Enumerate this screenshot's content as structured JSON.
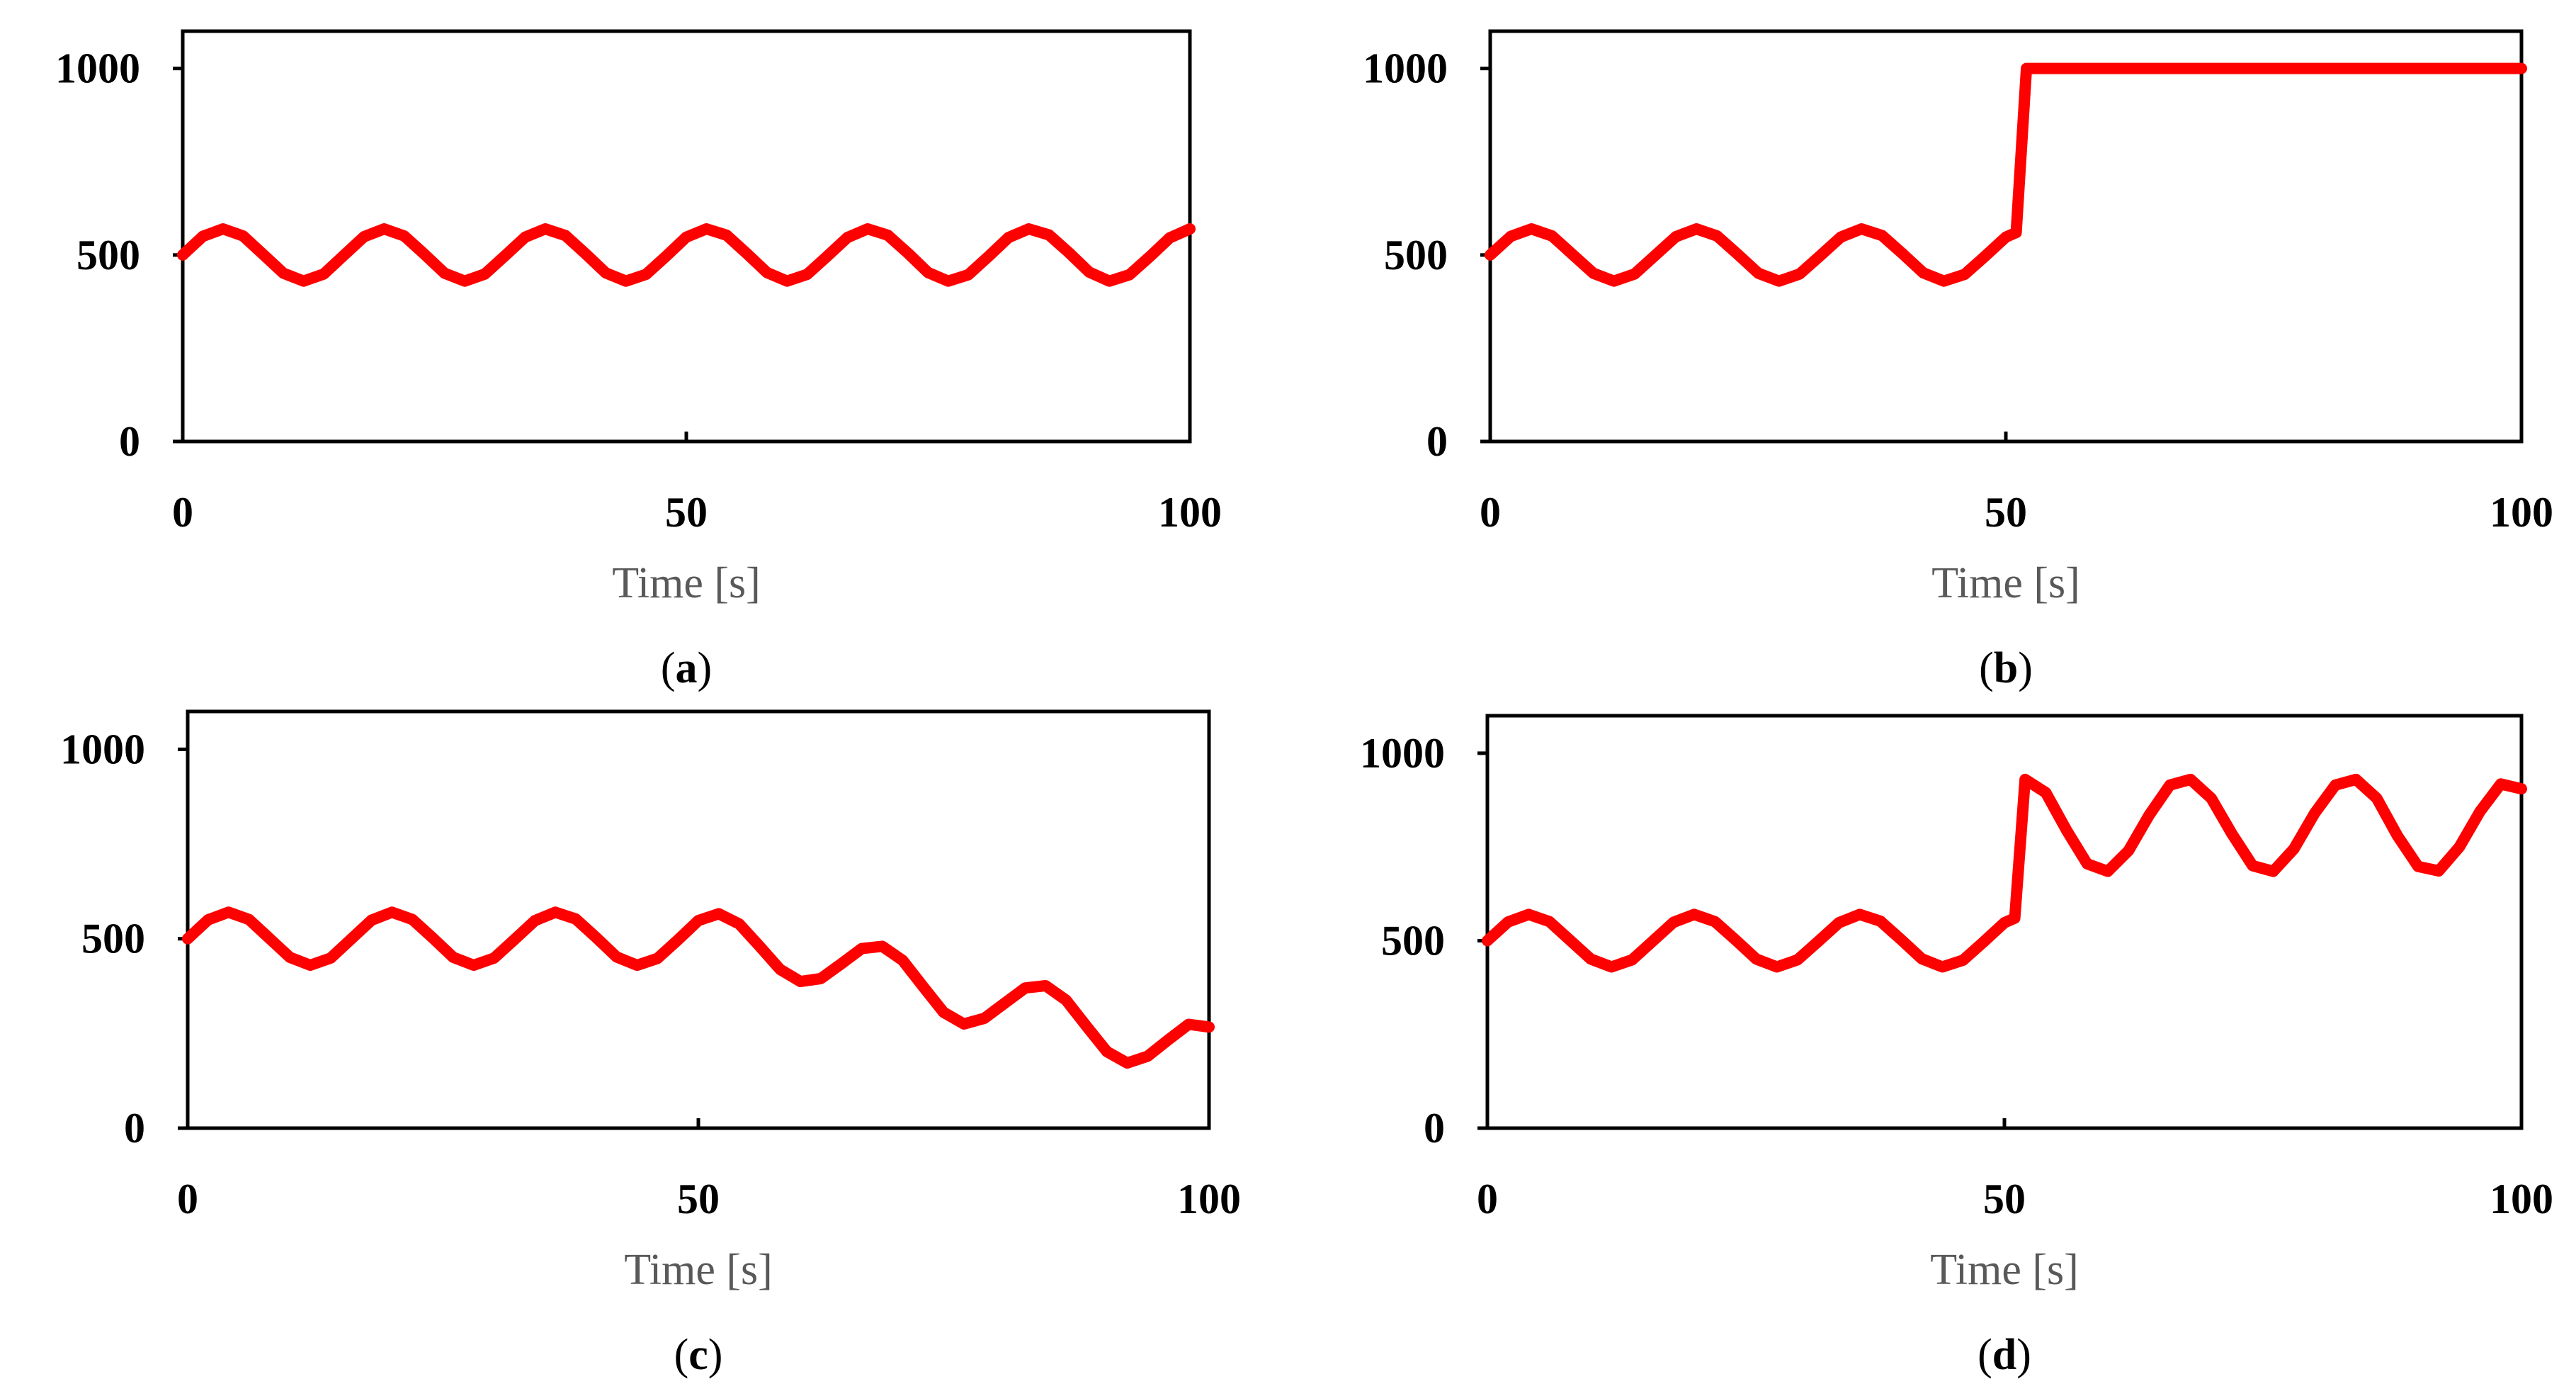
{
  "colors": {
    "series": "#ff0000",
    "axis": "#000000",
    "axis_title": "#595959"
  },
  "chart_data": [
    {
      "id": "a",
      "type": "line",
      "panel_label": "(a)",
      "panel_letter": "a",
      "title": "",
      "xlabel": "Time [s]",
      "ylabel": "",
      "xlim": [
        0,
        100
      ],
      "ylim": [
        0,
        1100
      ],
      "xticks": [
        0,
        50,
        100
      ],
      "yticks": [
        0,
        500,
        1000
      ],
      "xtick_labels": [
        "0",
        "50",
        "100"
      ],
      "ytick_labels": [
        "0",
        "500",
        "1000"
      ],
      "grid": false,
      "series": [
        {
          "name": "a",
          "x": [
            0,
            2,
            4,
            6,
            8,
            10,
            12,
            14,
            16,
            18,
            20,
            22,
            24,
            26,
            28,
            30,
            32,
            34,
            36,
            38,
            40,
            42,
            44,
            46,
            48,
            50,
            52,
            54,
            56,
            58,
            60,
            62,
            64,
            66,
            68,
            70,
            72,
            74,
            76,
            78,
            80,
            82,
            84,
            86,
            88,
            90,
            92,
            94,
            96,
            98,
            100
          ],
          "y": [
            500,
            550,
            570,
            551,
            501,
            451,
            430,
            449,
            499,
            549,
            570,
            551,
            502,
            451,
            430,
            449,
            498,
            548,
            570,
            552,
            503,
            452,
            430,
            448,
            497,
            548,
            570,
            553,
            504,
            453,
            430,
            448,
            497,
            547,
            570,
            553,
            505,
            453,
            430,
            447,
            496,
            547,
            570,
            554,
            506,
            454,
            430,
            447,
            495,
            546,
            570
          ]
        }
      ]
    },
    {
      "id": "b",
      "type": "line",
      "panel_label": "(b)",
      "panel_letter": "b",
      "title": "",
      "xlabel": "Time [s]",
      "ylabel": "",
      "xlim": [
        0,
        100
      ],
      "ylim": [
        0,
        1100
      ],
      "xticks": [
        0,
        50,
        100
      ],
      "yticks": [
        0,
        500,
        1000
      ],
      "xtick_labels": [
        "0",
        "50",
        "100"
      ],
      "ytick_labels": [
        "0",
        "500",
        "1000"
      ],
      "grid": false,
      "series": [
        {
          "name": "b",
          "x": [
            0,
            2,
            4,
            6,
            8,
            10,
            12,
            14,
            16,
            18,
            20,
            22,
            24,
            26,
            28,
            30,
            32,
            34,
            36,
            38,
            40,
            42,
            44,
            46,
            48,
            50,
            51,
            52,
            53,
            56,
            60,
            70,
            80,
            90,
            100
          ],
          "y": [
            500,
            550,
            570,
            551,
            501,
            451,
            430,
            449,
            499,
            549,
            570,
            551,
            502,
            451,
            430,
            449,
            498,
            548,
            570,
            552,
            503,
            452,
            430,
            448,
            497,
            548,
            560,
            1000,
            1000,
            1000,
            1000,
            1000,
            1000,
            1000,
            1000
          ]
        }
      ]
    },
    {
      "id": "c",
      "type": "line",
      "panel_label": "(c)",
      "panel_letter": "c",
      "title": "",
      "xlabel": "Time [s]",
      "ylabel": "",
      "xlim": [
        0,
        100
      ],
      "ylim": [
        0,
        1100
      ],
      "xticks": [
        0,
        50,
        100
      ],
      "yticks": [
        0,
        500,
        1000
      ],
      "xtick_labels": [
        "0",
        "50",
        "100"
      ],
      "ytick_labels": [
        "0",
        "500",
        "1000"
      ],
      "grid": false,
      "series": [
        {
          "name": "c",
          "x": [
            0,
            2,
            4,
            6,
            8,
            10,
            12,
            14,
            16,
            18,
            20,
            22,
            24,
            26,
            28,
            30,
            32,
            34,
            36,
            38,
            40,
            42,
            44,
            46,
            48,
            50,
            52,
            54,
            56,
            58,
            60,
            62,
            64,
            66,
            68,
            70,
            72,
            74,
            76,
            78,
            80,
            82,
            84,
            86,
            88,
            90,
            92,
            94,
            96,
            98,
            100
          ],
          "y": [
            500,
            550,
            570,
            551,
            501,
            451,
            430,
            449,
            499,
            549,
            570,
            551,
            502,
            451,
            430,
            449,
            498,
            548,
            570,
            552,
            503,
            452,
            430,
            448,
            497,
            548,
            566,
            539,
            480,
            419,
            387,
            395,
            434,
            474,
            480,
            443,
            374,
            306,
            275,
            290,
            330,
            370,
            376,
            338,
            269,
            202,
            172,
            190,
            233,
            274,
            267
          ]
        }
      ]
    },
    {
      "id": "d",
      "type": "line",
      "panel_label": "(d)",
      "panel_letter": "d",
      "title": "",
      "xlabel": "Time [s]",
      "ylabel": "",
      "xlim": [
        0,
        100
      ],
      "ylim": [
        0,
        1100
      ],
      "xticks": [
        0,
        50,
        100
      ],
      "yticks": [
        0,
        500,
        1000
      ],
      "xtick_labels": [
        "0",
        "50",
        "100"
      ],
      "ytick_labels": [
        "0",
        "500",
        "1000"
      ],
      "grid": false,
      "series": [
        {
          "name": "d",
          "x": [
            0,
            2,
            4,
            6,
            8,
            10,
            12,
            14,
            16,
            18,
            20,
            22,
            24,
            26,
            28,
            30,
            32,
            34,
            36,
            38,
            40,
            42,
            44,
            46,
            48,
            50,
            51,
            52,
            54,
            56,
            58,
            60,
            62,
            64,
            66,
            68,
            70,
            72,
            74,
            76,
            78,
            80,
            82,
            84,
            86,
            88,
            90,
            92,
            94,
            96,
            98,
            100
          ],
          "y": [
            500,
            550,
            570,
            551,
            501,
            451,
            430,
            449,
            499,
            549,
            570,
            551,
            502,
            451,
            430,
            449,
            498,
            548,
            570,
            552,
            503,
            452,
            430,
            448,
            497,
            548,
            560,
            930,
            895,
            795,
            705,
            685,
            740,
            835,
            915,
            930,
            880,
            785,
            700,
            685,
            745,
            840,
            915,
            930,
            880,
            780,
            698,
            686,
            750,
            845,
            918,
            905
          ]
        }
      ]
    }
  ]
}
